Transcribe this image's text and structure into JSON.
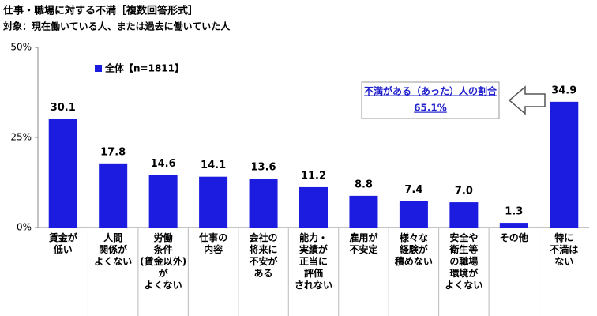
{
  "chart_data": {
    "type": "bar",
    "title": "仕事・職場に対する不満［複数回答形式］",
    "subtitle": "対象：現在働いている人、または過去に働いていた人",
    "categories": [
      "賃金が\n低い",
      "人間\n関係が\nよくない",
      "労働\n条件\n(賃金以外)が\nよくない",
      "仕事の\n内容",
      "会社の\n将来に\n不安が\nある",
      "能力・\n実績が\n正当に\n評価\nされない",
      "雇用が\n不安定",
      "様々な\n経験が\n積めない",
      "安全や\n衛生等\nの職場\n環境が\nよくない",
      "その他",
      "特に\n不満は\nない"
    ],
    "series": [
      {
        "name": "全体【n=1811】",
        "color": "#1c1ce0",
        "values": [
          30.1,
          17.8,
          14.6,
          14.1,
          13.6,
          11.2,
          8.8,
          7.4,
          7.0,
          1.3,
          34.9
        ],
        "value_labels": [
          "30.1",
          "17.8",
          "14.6",
          "14.1",
          "13.6",
          "11.2",
          "8.8",
          "7.4",
          "7.0",
          "1.3",
          "34.9"
        ]
      }
    ],
    "ylim": [
      0,
      50
    ],
    "yticks": [
      {
        "value": 0,
        "label": "0%"
      },
      {
        "value": 25,
        "label": "25%"
      },
      {
        "value": 50,
        "label": "50%"
      }
    ],
    "annotations": [
      "不満がある（あった）人の割合",
      "65.1%"
    ]
  }
}
